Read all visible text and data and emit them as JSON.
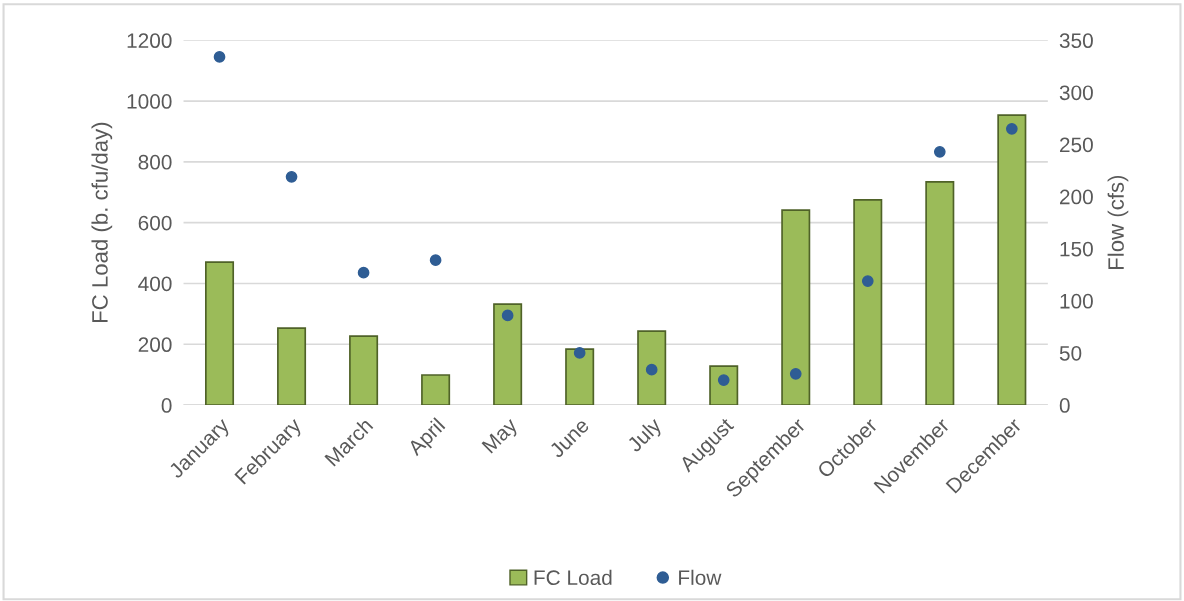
{
  "chart_data": {
    "type": "bar",
    "ylabel": "FC Load (b. cfu/day)",
    "y2label": "Flow (cfs)",
    "categories": [
      "January",
      "February",
      "March",
      "April",
      "May",
      "June",
      "July",
      "August",
      "September",
      "October",
      "November",
      "December"
    ],
    "series": [
      {
        "name": "FC Load",
        "color": "#9bbb59",
        "values": [
          470,
          253,
          227,
          99,
          332,
          184,
          243,
          128,
          641,
          675,
          734,
          954
        ]
      },
      {
        "name": "Flow",
        "type": "scatter",
        "axis": "y2",
        "color": "#2f5d94",
        "values": [
          334,
          219,
          127,
          139,
          86,
          50,
          34,
          24,
          30,
          119,
          243,
          265
        ]
      }
    ],
    "ylim": [
      0,
      1200
    ],
    "yticks": [
      0,
      200,
      400,
      600,
      800,
      1000,
      1200
    ],
    "y2lim": [
      0,
      350
    ],
    "y2ticks": [
      0,
      50,
      100,
      150,
      200,
      250,
      300,
      350
    ],
    "grid": "y",
    "legend": "bottom",
    "marker": "circle"
  }
}
